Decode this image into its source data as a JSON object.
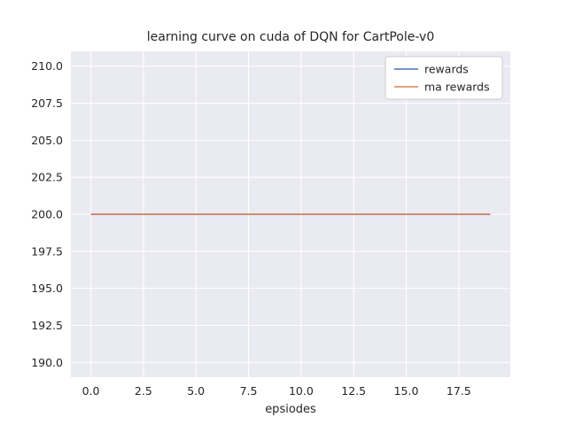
{
  "chart_data": {
    "type": "line",
    "title": "learning curve on cuda of DQN for CartPole-v0",
    "xlabel": "epsiodes",
    "ylabel": "",
    "x": [
      0,
      1,
      2,
      3,
      4,
      5,
      6,
      7,
      8,
      9,
      10,
      11,
      12,
      13,
      14,
      15,
      16,
      17,
      18,
      19
    ],
    "series": [
      {
        "name": "rewards",
        "color": "#4c72b0",
        "values": [
          200,
          200,
          200,
          200,
          200,
          200,
          200,
          200,
          200,
          200,
          200,
          200,
          200,
          200,
          200,
          200,
          200,
          200,
          200,
          200
        ]
      },
      {
        "name": "ma rewards",
        "color": "#dd8452",
        "values": [
          200,
          200,
          200,
          200,
          200,
          200,
          200,
          200,
          200,
          200,
          200,
          200,
          200,
          200,
          200,
          200,
          200,
          200,
          200,
          200
        ]
      }
    ],
    "xlim": [
      -0.95,
      19.95
    ],
    "ylim": [
      189.0,
      211.0
    ],
    "xticks": [
      0.0,
      2.5,
      5.0,
      7.5,
      10.0,
      12.5,
      15.0,
      17.5
    ],
    "yticks": [
      190.0,
      192.5,
      195.0,
      197.5,
      200.0,
      202.5,
      205.0,
      207.5,
      210.0
    ],
    "grid": true,
    "legend_position": "upper right",
    "colors": {
      "plot_bg": "#eaeaf2",
      "grid": "#ffffff",
      "text": "#262626",
      "legend_bg": "#ffffff",
      "legend_border": "#cccccc"
    }
  }
}
